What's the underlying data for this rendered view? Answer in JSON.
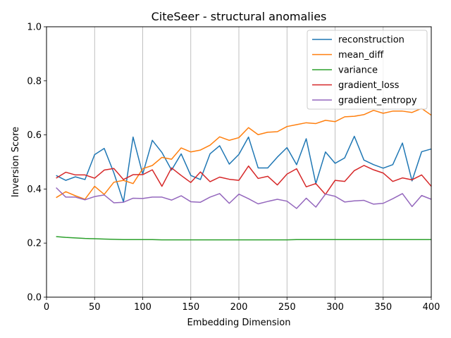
{
  "chart_data": {
    "type": "line",
    "title": "CiteSeer - structural anomalies",
    "xlabel": "Embedding Dimension",
    "ylabel": "Inversion Score",
    "xlim": [
      0,
      400
    ],
    "ylim": [
      0,
      1.0
    ],
    "xticks": [
      "0",
      "50",
      "100",
      "150",
      "200",
      "250",
      "300",
      "350",
      "400"
    ],
    "yticks": [
      "0.0",
      "0.2",
      "0.4",
      "0.6",
      "0.8",
      "1.0"
    ],
    "grid": "x-only",
    "legend_position": "top-right",
    "x": [
      10,
      20,
      30,
      40,
      50,
      60,
      70,
      80,
      90,
      100,
      110,
      120,
      130,
      140,
      150,
      160,
      170,
      180,
      190,
      200,
      210,
      220,
      230,
      240,
      250,
      260,
      270,
      280,
      290,
      300,
      310,
      320,
      330,
      340,
      350,
      360,
      370,
      380,
      390,
      400
    ],
    "series": [
      {
        "name": "reconstruction",
        "color": "#1f77b4",
        "values": [
          0.45,
          0.432,
          0.445,
          0.435,
          0.527,
          0.55,
          0.46,
          0.352,
          0.592,
          0.455,
          0.58,
          0.535,
          0.47,
          0.53,
          0.45,
          0.435,
          0.53,
          0.56,
          0.492,
          0.528,
          0.592,
          0.478,
          0.478,
          0.518,
          0.553,
          0.49,
          0.586,
          0.42,
          0.537,
          0.495,
          0.515,
          0.595,
          0.507,
          0.49,
          0.477,
          0.49,
          0.57,
          0.43,
          0.538,
          0.548
        ]
      },
      {
        "name": "mean_diff",
        "color": "#ff7f0e",
        "values": [
          0.368,
          0.39,
          0.375,
          0.362,
          0.41,
          0.38,
          0.425,
          0.432,
          0.42,
          0.475,
          0.487,
          0.517,
          0.51,
          0.552,
          0.537,
          0.544,
          0.562,
          0.593,
          0.58,
          0.59,
          0.627,
          0.601,
          0.61,
          0.612,
          0.631,
          0.638,
          0.645,
          0.642,
          0.654,
          0.649,
          0.667,
          0.669,
          0.675,
          0.691,
          0.68,
          0.688,
          0.688,
          0.683,
          0.698,
          0.673
        ]
      },
      {
        "name": "variance",
        "color": "#2ca02c",
        "values": [
          0.224,
          0.221,
          0.219,
          0.217,
          0.216,
          0.215,
          0.214,
          0.213,
          0.213,
          0.213,
          0.213,
          0.212,
          0.212,
          0.212,
          0.212,
          0.212,
          0.212,
          0.212,
          0.212,
          0.212,
          0.212,
          0.212,
          0.212,
          0.212,
          0.212,
          0.213,
          0.213,
          0.213,
          0.213,
          0.213,
          0.213,
          0.213,
          0.213,
          0.213,
          0.213,
          0.213,
          0.213,
          0.213,
          0.213,
          0.213
        ]
      },
      {
        "name": "gradient_loss",
        "color": "#d62728",
        "values": [
          0.44,
          0.462,
          0.452,
          0.452,
          0.44,
          0.47,
          0.476,
          0.435,
          0.453,
          0.453,
          0.471,
          0.41,
          0.478,
          0.45,
          0.424,
          0.463,
          0.427,
          0.444,
          0.436,
          0.432,
          0.485,
          0.439,
          0.447,
          0.415,
          0.455,
          0.475,
          0.408,
          0.42,
          0.38,
          0.432,
          0.428,
          0.468,
          0.487,
          0.471,
          0.459,
          0.428,
          0.441,
          0.434,
          0.452,
          0.41
        ]
      },
      {
        "name": "gradient_entropy",
        "color": "#9467bd",
        "values": [
          0.405,
          0.37,
          0.37,
          0.36,
          0.372,
          0.378,
          0.349,
          0.351,
          0.366,
          0.365,
          0.37,
          0.37,
          0.359,
          0.375,
          0.353,
          0.351,
          0.37,
          0.383,
          0.347,
          0.381,
          0.364,
          0.345,
          0.354,
          0.362,
          0.355,
          0.328,
          0.366,
          0.333,
          0.381,
          0.373,
          0.352,
          0.356,
          0.358,
          0.344,
          0.347,
          0.364,
          0.383,
          0.335,
          0.376,
          0.362
        ]
      }
    ]
  }
}
